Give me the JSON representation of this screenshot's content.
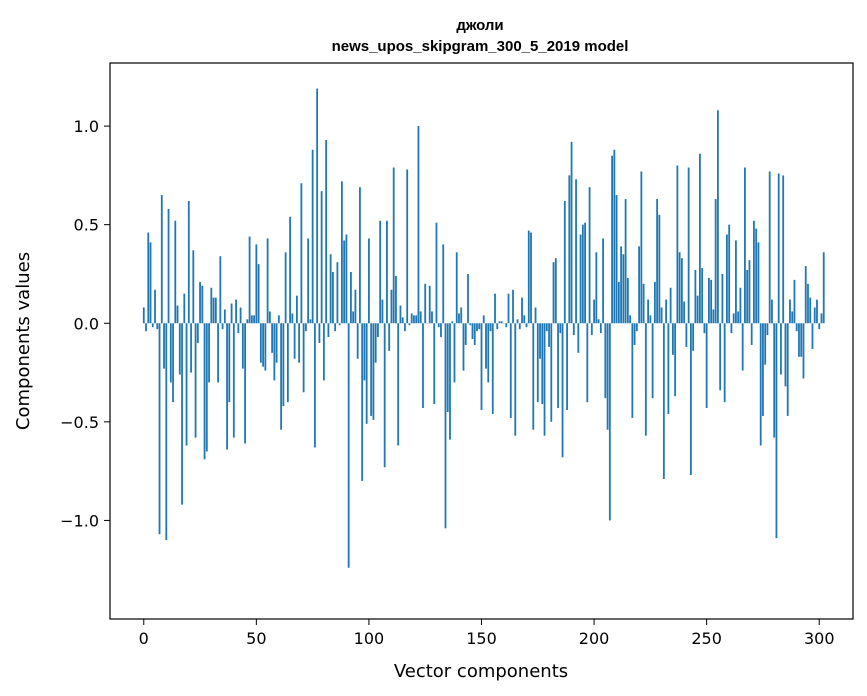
{
  "chart_data": {
    "type": "bar",
    "title": "джоли",
    "subtitle": "news_upos_skipgram_300_5_2019 model",
    "xlabel": "Vector components",
    "ylabel": "Components values",
    "xlim": [
      -15,
      315
    ],
    "ylim": [
      -1.5,
      1.32
    ],
    "xticks": [
      0,
      50,
      100,
      150,
      200,
      250,
      300
    ],
    "xtick_labels": [
      "0",
      "50",
      "100",
      "150",
      "200",
      "250",
      "300"
    ],
    "yticks": [
      -1.0,
      -0.5,
      0.0,
      0.5,
      1.0
    ],
    "ytick_labels": [
      "−1.0",
      "−0.5",
      "0.0",
      "0.5",
      "1.0"
    ],
    "grid": false,
    "legend": "none",
    "bar_color": "#1f77b4",
    "values": [
      0.08,
      -0.04,
      0.46,
      0.41,
      -0.02,
      0.17,
      -0.03,
      -1.07,
      0.65,
      -0.23,
      -1.1,
      0.58,
      -0.3,
      -0.4,
      0.52,
      0.09,
      -0.26,
      -0.92,
      0.15,
      -0.62,
      0.62,
      -0.25,
      0.37,
      -0.58,
      -0.1,
      0.21,
      0.19,
      -0.69,
      -0.65,
      -0.3,
      0.18,
      0.13,
      0.13,
      -0.3,
      0.34,
      -0.03,
      0.07,
      -0.64,
      -0.4,
      0.1,
      -0.58,
      0.12,
      -0.05,
      0.08,
      -0.23,
      -0.61,
      0.02,
      0.44,
      0.04,
      0.04,
      0.4,
      0.3,
      -0.2,
      -0.22,
      -0.24,
      0.43,
      0.06,
      -0.15,
      -0.29,
      -0.2,
      0.04,
      -0.54,
      -0.42,
      0.36,
      -0.4,
      0.54,
      0.05,
      -0.18,
      0.14,
      -0.2,
      0.71,
      -0.35,
      -0.04,
      0.43,
      0.02,
      0.88,
      -0.63,
      1.19,
      -0.1,
      0.67,
      -0.29,
      0.93,
      -0.07,
      0.35,
      0.26,
      -0.04,
      0.31,
      -0.01,
      0.72,
      0.42,
      0.45,
      -1.24,
      0.26,
      0.06,
      0.17,
      -0.18,
      0.69,
      -0.8,
      -0.29,
      -0.51,
      0.43,
      -0.47,
      -0.49,
      -0.2,
      -0.07,
      0.52,
      0.12,
      -0.73,
      0.52,
      -0.14,
      0.17,
      0.79,
      0.24,
      -0.62,
      0.09,
      0.03,
      -0.04,
      0.78,
      -0.01,
      0.05,
      0.04,
      0.04,
      1.0,
      0.06,
      -0.43,
      0.2,
      0.0,
      0.19,
      0.06,
      -0.41,
      0.51,
      -0.02,
      -0.07,
      0.4,
      -1.04,
      -0.45,
      -0.59,
      0.01,
      -0.3,
      0.36,
      0.05,
      0.08,
      -0.24,
      -0.11,
      0.25,
      -0.01,
      -0.08,
      -0.11,
      -0.04,
      -0.03,
      -0.44,
      0.04,
      -0.23,
      -0.3,
      -0.04,
      -0.46,
      0.15,
      -0.03,
      0.01,
      0.01,
      0.0,
      -0.02,
      0.15,
      -0.48,
      0.17,
      -0.57,
      0.02,
      -0.03,
      0.13,
      0.04,
      -0.02,
      0.47,
      0.46,
      -0.54,
      0.08,
      -0.4,
      -0.18,
      -0.41,
      -0.57,
      -0.04,
      -0.12,
      -0.5,
      0.31,
      0.33,
      -0.43,
      -0.05,
      -0.68,
      0.62,
      -0.44,
      0.75,
      0.92,
      -0.06,
      0.73,
      -0.15,
      0.45,
      0.5,
      0.51,
      -0.4,
      0.69,
      -0.06,
      0.12,
      0.36,
      0.02,
      -0.05,
      0.43,
      -0.38,
      -0.54,
      -1.0,
      0.85,
      0.88,
      0.65,
      0.21,
      0.39,
      0.35,
      0.63,
      0.23,
      0.04,
      -0.48,
      -0.11,
      -0.04,
      0.39,
      0.77,
      0.2,
      -0.57,
      0.12,
      0.04,
      -0.38,
      0.21,
      0.63,
      0.55,
      0.08,
      -0.79,
      0.12,
      -0.46,
      0.18,
      -0.16,
      -0.37,
      0.8,
      0.36,
      0.33,
      0.11,
      -0.12,
      0.79,
      -0.77,
      -0.14,
      0.27,
      0.14,
      0.86,
      0.28,
      -0.05,
      -0.43,
      0.23,
      0.22,
      0.07,
      0.63,
      1.08,
      -0.34,
      0.25,
      -0.4,
      0.45,
      0.5,
      -0.05,
      0.05,
      0.42,
      0.06,
      0.18,
      -0.24,
      0.79,
      0.27,
      0.32,
      -0.11,
      0.52,
      0.48,
      0.41,
      -0.62,
      -0.47,
      -0.21,
      -0.06,
      0.77,
      0.12,
      -0.58,
      -1.09,
      0.76,
      -0.26,
      0.75,
      -0.32,
      -0.47,
      0.12,
      0.06,
      0.22,
      -0.04,
      -0.17,
      -0.17,
      -0.28,
      0.29,
      0.2,
      0.13,
      -0.13,
      0.08,
      0.12,
      -0.03,
      0.05,
      0.36
    ]
  }
}
